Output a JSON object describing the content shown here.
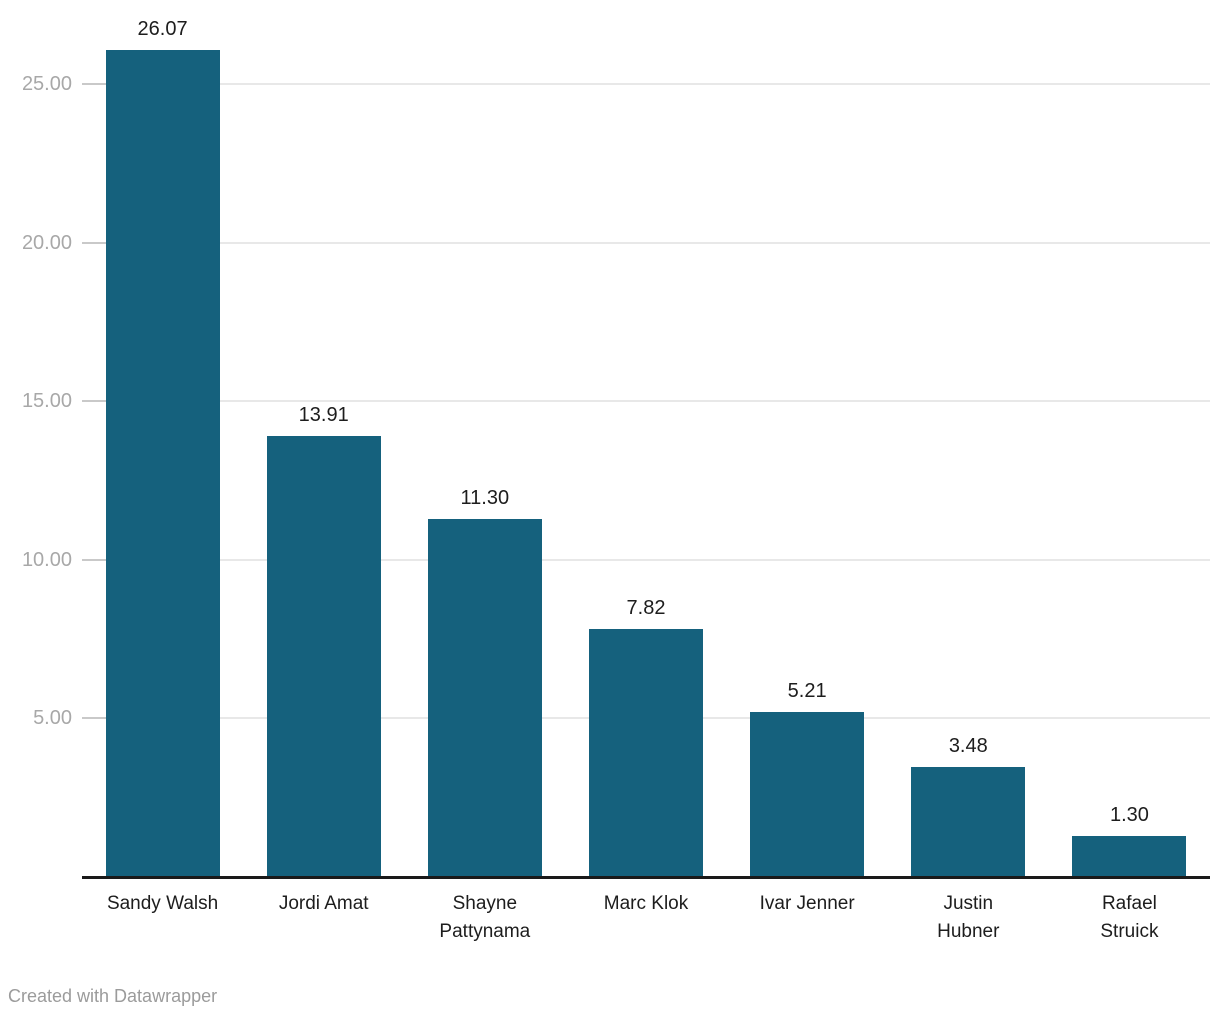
{
  "chart_data": {
    "type": "bar",
    "categories": [
      "Sandy Walsh",
      "Jordi Amat",
      "Shayne\nPattynama",
      "Marc Klok",
      "Ivar Jenner",
      "Justin\nHubner",
      "Rafael\nStruick"
    ],
    "values": [
      26.07,
      13.91,
      11.3,
      7.82,
      5.21,
      3.48,
      1.3
    ],
    "value_labels": [
      "26.07",
      "13.91",
      "11.30",
      "7.82",
      "5.21",
      "3.48",
      "1.30"
    ],
    "title": "",
    "xlabel": "",
    "ylabel": "",
    "ylim": [
      0,
      27.6
    ],
    "yticks": [
      5,
      10,
      15,
      20,
      25
    ],
    "ytick_labels": [
      "5.00",
      "10.00",
      "15.00",
      "20.00",
      "25.00"
    ],
    "grid": true,
    "legend": false,
    "bar_color": "#15617d"
  },
  "colors": {
    "bar": "#15617d",
    "value_label": "#1d1d1d",
    "ytick_label": "#a8a8a8",
    "gridline": "#e8e8e8",
    "tick_dash": "#c9c9c9",
    "axis_line": "#1a1a1a",
    "footer_text": "#9b9b9b",
    "background": "#ffffff"
  },
  "footer": {
    "attribution": "Created with Datawrapper"
  }
}
